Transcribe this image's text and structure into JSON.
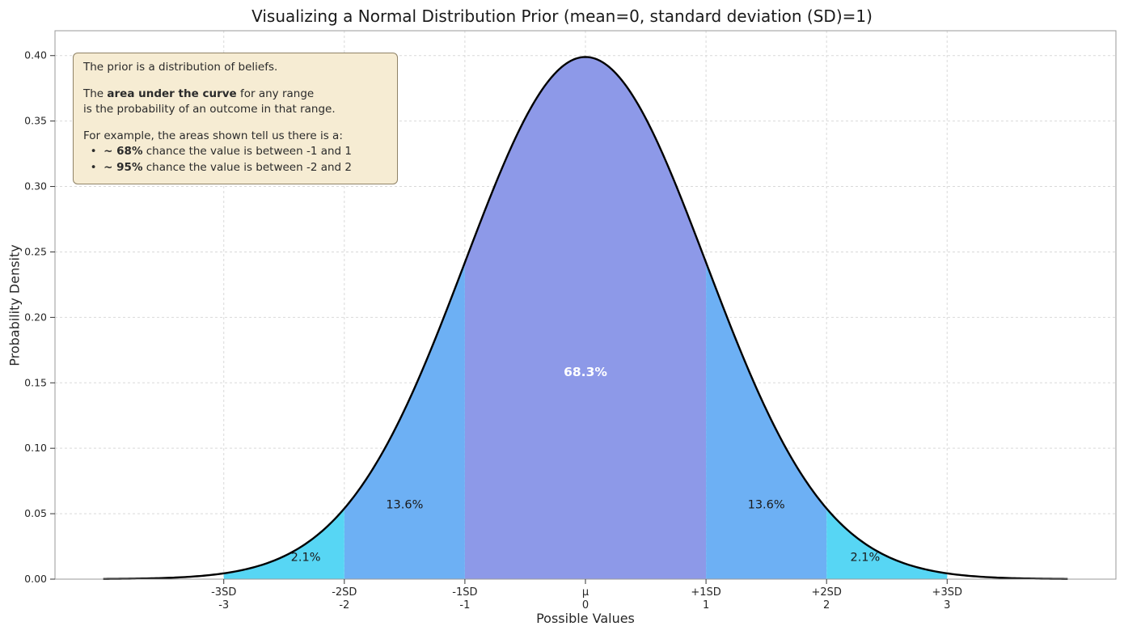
{
  "chart_data": {
    "type": "area",
    "title": "Visualizing a Normal Distribution Prior (mean=0, standard deviation (SD)=1)",
    "xlabel": "Possible Values",
    "ylabel": "Probability Density",
    "xlim": [
      -4.4,
      4.4
    ],
    "ylim": [
      0,
      0.419
    ],
    "grid": true,
    "curve_color": "#000000",
    "distribution": {
      "mean": 0,
      "sd": 1,
      "curve_x_range": [
        -4,
        4
      ]
    },
    "y_ticks": [
      0.0,
      0.05,
      0.1,
      0.15,
      0.2,
      0.25,
      0.3,
      0.35,
      0.4
    ],
    "x_ticks": [
      {
        "value": -3,
        "line1": "-3SD",
        "line2": "-3"
      },
      {
        "value": -2,
        "line1": "-2SD",
        "line2": "-2"
      },
      {
        "value": -1,
        "line1": "-1SD",
        "line2": "-1"
      },
      {
        "value": 0,
        "line1": "μ",
        "line2": "0"
      },
      {
        "value": 1,
        "line1": "+1SD",
        "line2": "1"
      },
      {
        "value": 2,
        "line1": "+2SD",
        "line2": "2"
      },
      {
        "value": 3,
        "line1": "+3SD",
        "line2": "3"
      }
    ],
    "regions": [
      {
        "from": -1,
        "to": 1,
        "color": "#8d99e8",
        "probability": "68.3%"
      },
      {
        "from": -2,
        "to": -1,
        "color": "#6db0f4",
        "probability": "13.6%"
      },
      {
        "from": 1,
        "to": 2,
        "color": "#6db0f4",
        "probability": "13.6%"
      },
      {
        "from": -3,
        "to": -2,
        "color": "#57d6f4",
        "probability": "2.1%"
      },
      {
        "from": 2,
        "to": 3,
        "color": "#57d6f4",
        "probability": "2.1%"
      }
    ],
    "region_labels": [
      {
        "text": "68.3%",
        "x": 0,
        "y": 0.155,
        "color": "#ffffff",
        "bold": true
      },
      {
        "text": "13.6%",
        "x": -1.5,
        "y": 0.054,
        "color": "#1a1a1a",
        "bold": false
      },
      {
        "text": "13.6%",
        "x": 1.5,
        "y": 0.054,
        "color": "#1a1a1a",
        "bold": false
      },
      {
        "text": "2.1%",
        "x": -2.32,
        "y": 0.014,
        "color": "#1a1a1a",
        "bold": false
      },
      {
        "text": "2.1%",
        "x": 2.32,
        "y": 0.014,
        "color": "#1a1a1a",
        "bold": false
      }
    ]
  },
  "annotation": {
    "bg": "#f6ecd3",
    "border": "#8f8266",
    "lines": [
      [
        {
          "t": "The prior is a distribution of beliefs.",
          "bold": false
        }
      ],
      [],
      [
        {
          "t": "The ",
          "bold": false
        },
        {
          "t": "area under the curve",
          "bold": true
        },
        {
          "t": " for any range",
          "bold": false
        }
      ],
      [
        {
          "t": "is the probability of an outcome in that range.",
          "bold": false
        }
      ],
      [],
      [
        {
          "t": "For example, the areas shown tell us there is a:",
          "bold": false
        }
      ],
      [
        {
          "t": "  •  ",
          "bold": false
        },
        {
          "t": "~ 68%",
          "bold": true
        },
        {
          "t": " chance the value is between -1 and 1",
          "bold": false
        }
      ],
      [
        {
          "t": "  •  ",
          "bold": false
        },
        {
          "t": "~ 95%",
          "bold": true
        },
        {
          "t": " chance the value is between -2 and 2",
          "bold": false
        }
      ]
    ]
  }
}
